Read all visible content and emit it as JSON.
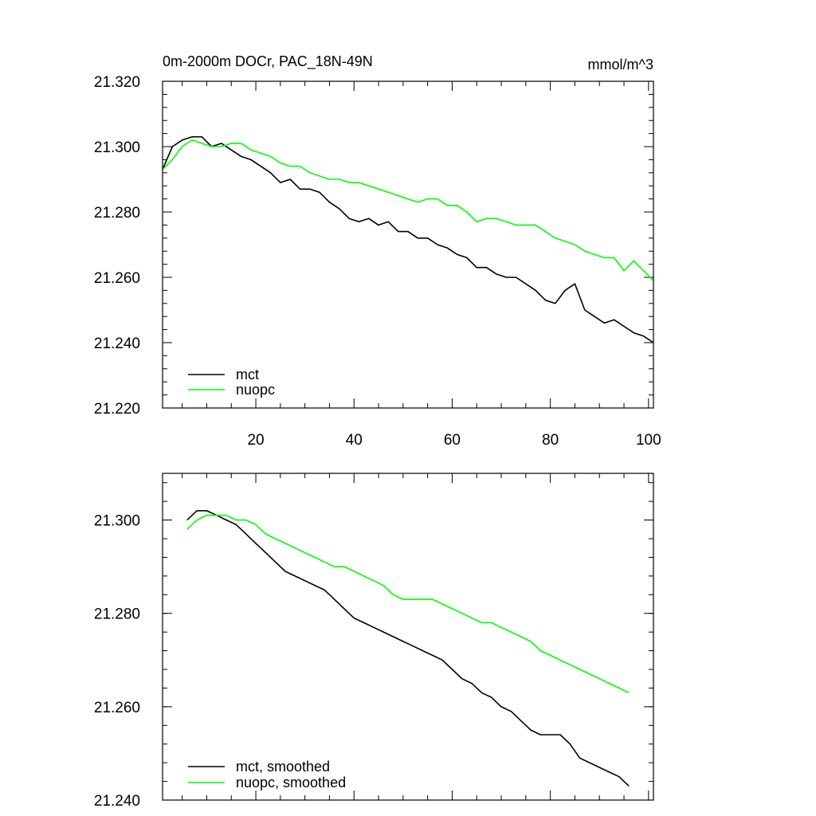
{
  "chart_data": [
    {
      "type": "line",
      "title": "0m-2000m DOCr, PAC_18N-49N",
      "units": "mmol/m^3",
      "xlim": [
        1,
        101
      ],
      "ylim": [
        21.22,
        21.32
      ],
      "x_ticks": [
        20,
        40,
        60,
        80,
        100
      ],
      "y_ticks": [
        "21.320",
        "21.300",
        "21.280",
        "21.260",
        "21.240",
        "21.220"
      ],
      "legend_position": "bottom-left",
      "series": [
        {
          "name": "mct",
          "color": "#000000",
          "x": [
            1,
            3,
            5,
            7,
            9,
            11,
            13,
            15,
            17,
            19,
            21,
            23,
            25,
            27,
            29,
            31,
            33,
            35,
            37,
            39,
            41,
            43,
            45,
            47,
            49,
            51,
            53,
            55,
            57,
            59,
            61,
            63,
            65,
            67,
            69,
            71,
            73,
            75,
            77,
            79,
            81,
            83,
            85,
            87,
            89,
            91,
            93,
            95,
            97,
            99,
            101
          ],
          "values": [
            21.293,
            21.3,
            21.302,
            21.303,
            21.303,
            21.3,
            21.301,
            21.299,
            21.297,
            21.296,
            21.294,
            21.292,
            21.289,
            21.29,
            21.287,
            21.287,
            21.286,
            21.283,
            21.281,
            21.278,
            21.277,
            21.278,
            21.276,
            21.277,
            21.274,
            21.274,
            21.272,
            21.272,
            21.27,
            21.269,
            21.267,
            21.266,
            21.263,
            21.263,
            21.261,
            21.26,
            21.26,
            21.258,
            21.256,
            21.253,
            21.252,
            21.256,
            21.258,
            21.25,
            21.248,
            21.246,
            21.247,
            21.245,
            21.243,
            21.242,
            21.24
          ]
        },
        {
          "name": "nuopc",
          "color": "#00ff00",
          "x": [
            1,
            3,
            5,
            7,
            9,
            11,
            13,
            15,
            17,
            19,
            21,
            23,
            25,
            27,
            29,
            31,
            33,
            35,
            37,
            39,
            41,
            43,
            45,
            47,
            49,
            51,
            53,
            55,
            57,
            59,
            61,
            63,
            65,
            67,
            69,
            71,
            73,
            75,
            77,
            79,
            81,
            83,
            85,
            87,
            89,
            91,
            93,
            95,
            97,
            99,
            101
          ],
          "values": [
            21.293,
            21.296,
            21.3,
            21.302,
            21.301,
            21.3,
            21.3,
            21.301,
            21.301,
            21.299,
            21.298,
            21.297,
            21.295,
            21.294,
            21.294,
            21.292,
            21.291,
            21.29,
            21.29,
            21.289,
            21.289,
            21.288,
            21.287,
            21.286,
            21.285,
            21.284,
            21.283,
            21.284,
            21.284,
            21.282,
            21.282,
            21.28,
            21.277,
            21.278,
            21.278,
            21.277,
            21.276,
            21.276,
            21.276,
            21.274,
            21.272,
            21.271,
            21.27,
            21.268,
            21.267,
            21.266,
            21.266,
            21.262,
            21.265,
            21.262,
            21.259
          ]
        }
      ]
    },
    {
      "type": "line",
      "xlim": [
        1,
        101
      ],
      "ylim": [
        21.24,
        21.31
      ],
      "x_ticks": [
        20,
        40,
        60,
        80,
        100
      ],
      "y_ticks": [
        "21.300",
        "21.280",
        "21.260",
        "21.240"
      ],
      "legend_position": "bottom-left",
      "series": [
        {
          "name": "mct, smoothed",
          "color": "#000000",
          "x": [
            6,
            8,
            10,
            12,
            14,
            16,
            18,
            20,
            22,
            24,
            26,
            28,
            30,
            32,
            34,
            36,
            38,
            40,
            42,
            44,
            46,
            48,
            50,
            52,
            54,
            56,
            58,
            60,
            62,
            64,
            66,
            68,
            70,
            72,
            74,
            76,
            78,
            80,
            82,
            84,
            86,
            88,
            90,
            92,
            94,
            96
          ],
          "values": [
            21.3,
            21.302,
            21.302,
            21.301,
            21.3,
            21.299,
            21.297,
            21.295,
            21.293,
            21.291,
            21.289,
            21.288,
            21.287,
            21.286,
            21.285,
            21.283,
            21.281,
            21.279,
            21.278,
            21.277,
            21.276,
            21.275,
            21.274,
            21.273,
            21.272,
            21.271,
            21.27,
            21.268,
            21.266,
            21.265,
            21.263,
            21.262,
            21.26,
            21.259,
            21.257,
            21.255,
            21.254,
            21.254,
            21.254,
            21.252,
            21.249,
            21.248,
            21.247,
            21.246,
            21.245,
            21.243
          ]
        },
        {
          "name": "nuopc, smoothed",
          "color": "#00ff00",
          "x": [
            6,
            8,
            10,
            12,
            14,
            16,
            18,
            20,
            22,
            24,
            26,
            28,
            30,
            32,
            34,
            36,
            38,
            40,
            42,
            44,
            46,
            48,
            50,
            52,
            54,
            56,
            58,
            60,
            62,
            64,
            66,
            68,
            70,
            72,
            74,
            76,
            78,
            80,
            82,
            84,
            86,
            88,
            90,
            92,
            94,
            96
          ],
          "values": [
            21.298,
            21.3,
            21.301,
            21.301,
            21.301,
            21.3,
            21.3,
            21.299,
            21.297,
            21.296,
            21.295,
            21.294,
            21.293,
            21.292,
            21.291,
            21.29,
            21.29,
            21.289,
            21.288,
            21.287,
            21.286,
            21.284,
            21.283,
            21.283,
            21.283,
            21.283,
            21.282,
            21.281,
            21.28,
            21.279,
            21.278,
            21.278,
            21.277,
            21.276,
            21.275,
            21.274,
            21.272,
            21.271,
            21.27,
            21.269,
            21.268,
            21.267,
            21.266,
            21.265,
            21.264,
            21.263
          ]
        }
      ]
    }
  ]
}
